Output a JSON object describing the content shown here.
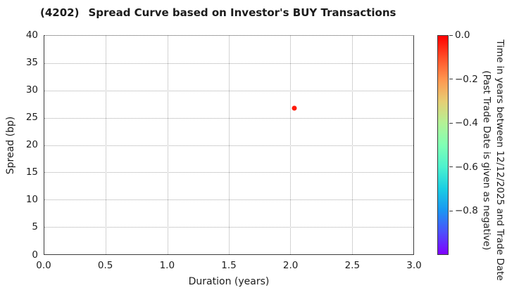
{
  "title": {
    "code": "(4202)",
    "text": "Spread Curve based on Investor's BUY Transactions"
  },
  "chart_data": {
    "type": "scatter",
    "title": "(4202) Spread Curve based on Investor's BUY Transactions",
    "xlabel": "Duration (years)",
    "ylabel": "Spread (bp)",
    "xlim": [
      0.0,
      3.0
    ],
    "ylim": [
      0,
      40
    ],
    "x_ticks": [
      0.0,
      0.5,
      1.0,
      1.5,
      2.0,
      2.5,
      3.0
    ],
    "x_tick_labels": [
      "0.0",
      "0.5",
      "1.0",
      "1.5",
      "2.0",
      "2.5",
      "3.0"
    ],
    "y_ticks": [
      0,
      5,
      10,
      15,
      20,
      25,
      30,
      35,
      40
    ],
    "y_tick_labels": [
      "0",
      "5",
      "10",
      "15",
      "20",
      "25",
      "30",
      "35",
      "40"
    ],
    "grid": true,
    "legend_position": "none",
    "points": [
      {
        "x": 2.03,
        "y": 26.7,
        "color_value": 0.0,
        "color": "#ff1a0a"
      }
    ],
    "colorbar": {
      "title_line1": "Time in years between 12/12/2025 and Trade Date",
      "title_line2": "(Past Trade Date is given as negative)",
      "range_top": 0.0,
      "range_bottom": -1.0,
      "tick_values": [
        0.0,
        -0.2,
        -0.4,
        -0.6,
        -0.8
      ],
      "tick_labels": [
        "0.0",
        "−0.2",
        "−0.4",
        "−0.6",
        "−0.8"
      ],
      "colormap": "rainbow",
      "gradient": [
        {
          "pos": 0.0,
          "color": "#ff0000"
        },
        {
          "pos": 0.1,
          "color": "#ff4f28"
        },
        {
          "pos": 0.2,
          "color": "#ff964f"
        },
        {
          "pos": 0.3,
          "color": "#e6ce74"
        },
        {
          "pos": 0.4,
          "color": "#b3f296"
        },
        {
          "pos": 0.5,
          "color": "#80ffb4"
        },
        {
          "pos": 0.6,
          "color": "#4df2ce"
        },
        {
          "pos": 0.7,
          "color": "#1acee3"
        },
        {
          "pos": 0.8,
          "color": "#1a96f2"
        },
        {
          "pos": 0.9,
          "color": "#4d4ffc"
        },
        {
          "pos": 1.0,
          "color": "#8000ff"
        }
      ]
    },
    "colors": {
      "text": "#1c1c1c",
      "grid": "#a8a8a8",
      "spine": "#3d3d3d"
    }
  }
}
